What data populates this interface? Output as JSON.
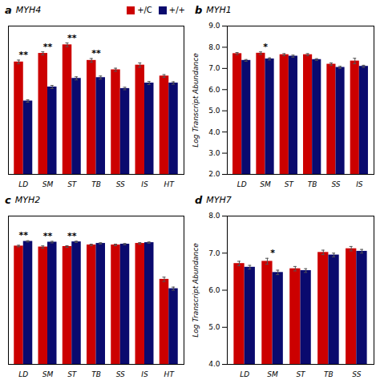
{
  "chart_data": [
    {
      "type": "bar",
      "panel_label": "a",
      "title": "MYH4",
      "categories": [
        "LD",
        "SM",
        "ST",
        "TB",
        "SS",
        "IS",
        "HT"
      ],
      "series": [
        {
          "name": "+/C",
          "color": "#CC0000",
          "values": [
            7.2,
            7.75,
            8.3,
            7.3,
            6.7,
            7.0,
            6.3
          ],
          "errors": [
            0.12,
            0.1,
            0.12,
            0.12,
            0.1,
            0.14,
            0.09
          ]
        },
        {
          "name": "+/+",
          "color": "#0A0A6E",
          "values": [
            4.7,
            5.6,
            6.15,
            6.2,
            5.5,
            5.85,
            5.85
          ],
          "errors": [
            0.08,
            0.1,
            0.1,
            0.1,
            0.08,
            0.1,
            0.08
          ]
        }
      ],
      "annotations": [
        {
          "category": "LD",
          "text": "**"
        },
        {
          "category": "SM",
          "text": "**"
        },
        {
          "category": "ST",
          "text": "**"
        },
        {
          "category": "TB",
          "text": "**"
        }
      ],
      "ylim": [
        0,
        9.5
      ],
      "tick_labels": "x",
      "legend": "upper right"
    },
    {
      "type": "bar",
      "panel_label": "b",
      "title": "MYH1",
      "categories": [
        "LD",
        "SM",
        "ST",
        "TB",
        "SS",
        "IS"
      ],
      "series": [
        {
          "name": "+/C",
          "color": "#CC0000",
          "values": [
            7.7,
            7.72,
            7.65,
            7.65,
            7.2,
            7.35
          ],
          "errors": [
            0.05,
            0.06,
            0.05,
            0.05,
            0.06,
            0.13
          ]
        },
        {
          "name": "+/+",
          "color": "#0A0A6E",
          "values": [
            7.38,
            7.45,
            7.58,
            7.42,
            7.05,
            7.1
          ],
          "errors": [
            0.04,
            0.05,
            0.05,
            0.04,
            0.05,
            0.05
          ]
        }
      ],
      "annotations": [
        {
          "category": "SM",
          "text": "*"
        }
      ],
      "ylim": [
        2,
        9
      ],
      "yticks": [
        2,
        3,
        4,
        5,
        6,
        7,
        8,
        9
      ],
      "ylabel": "Log Transcript Abundance"
    },
    {
      "type": "bar",
      "panel_label": "c",
      "title": "MYH2",
      "categories": [
        "LD",
        "SM",
        "ST",
        "TB",
        "SS",
        "IS",
        "HT"
      ],
      "series": [
        {
          "name": "+/C",
          "color": "#CC0000",
          "values": [
            7.58,
            7.52,
            7.55,
            7.65,
            7.65,
            7.75,
            5.45
          ],
          "errors": [
            0.05,
            0.07,
            0.05,
            0.05,
            0.05,
            0.05,
            0.14
          ]
        },
        {
          "name": "+/+",
          "color": "#0A0A6E",
          "values": [
            7.88,
            7.83,
            7.85,
            7.75,
            7.7,
            7.8,
            4.85
          ],
          "errors": [
            0.04,
            0.05,
            0.04,
            0.04,
            0.04,
            0.04,
            0.1
          ]
        }
      ],
      "annotations": [
        {
          "category": "LD",
          "text": "**"
        },
        {
          "category": "SM",
          "text": "**"
        },
        {
          "category": "ST",
          "text": "**"
        }
      ],
      "ylim": [
        0,
        9.5
      ],
      "tick_labels": "x"
    },
    {
      "type": "bar",
      "panel_label": "d",
      "title": "MYH7",
      "categories": [
        "LD",
        "SM",
        "ST",
        "TB",
        "SS"
      ],
      "series": [
        {
          "name": "+/C",
          "color": "#CC0000",
          "values": [
            6.72,
            6.78,
            6.58,
            7.02,
            7.12
          ],
          "errors": [
            0.06,
            0.08,
            0.06,
            0.06,
            0.06
          ]
        },
        {
          "name": "+/+",
          "color": "#0A0A6E",
          "values": [
            6.62,
            6.48,
            6.53,
            6.95,
            7.05
          ],
          "errors": [
            0.05,
            0.06,
            0.05,
            0.05,
            0.05
          ]
        }
      ],
      "annotations": [
        {
          "category": "SM",
          "text": "*"
        }
      ],
      "ylim": [
        4,
        8
      ],
      "yticks": [
        4,
        5,
        6,
        7,
        8
      ],
      "ylabel": "Log Transcript Abundance"
    }
  ]
}
